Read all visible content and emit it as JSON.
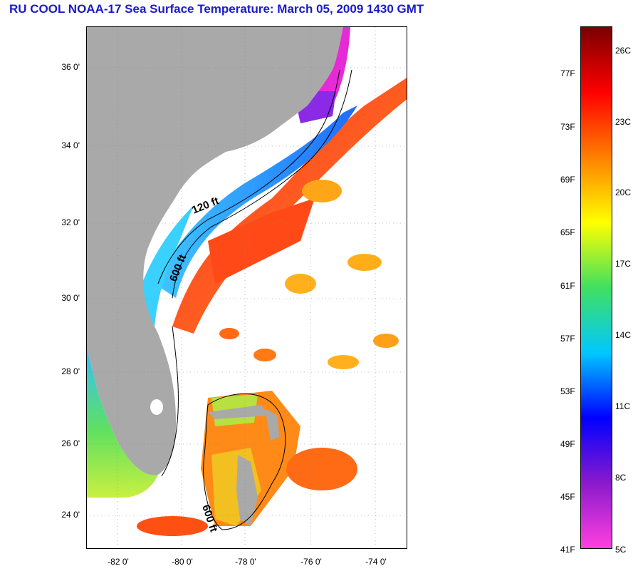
{
  "title": "RU COOL  NOAA-17  Sea Surface Temperature:  March 05, 2009 1430 GMT",
  "map": {
    "lat_labels": [
      "36 0'",
      "34 0'",
      "32 0'",
      "30 0'",
      "28 0'",
      "26 0'",
      "24 0'"
    ],
    "lon_labels": [
      "-82 0'",
      "-80 0'",
      "-78 0'",
      "-76 0'",
      "-74 0'"
    ],
    "contour_labels": [
      "120 ft",
      "600 ft",
      "600 ft"
    ],
    "colors": {
      "land": "#a9a9a9",
      "cloud": "#ffffff",
      "warm_stream": "#ff3b1e",
      "shelf_blue": "#1e9bff",
      "cold_magenta": "#e62ad6"
    }
  },
  "colorbar": {
    "fahrenheit": [
      "77F",
      "73F",
      "69F",
      "65F",
      "61F",
      "57F",
      "53F",
      "49F",
      "45F",
      "41F"
    ],
    "celsius": [
      "26C",
      "23C",
      "20C",
      "17C",
      "14C",
      "11C",
      "8C",
      "5C"
    ],
    "range_celsius": [
      5,
      27.5
    ],
    "gradient": [
      "#ff40e0",
      "#8a1acc",
      "#0000ff",
      "#00c8ff",
      "#40e060",
      "#ffff00",
      "#ff8000",
      "#ff0000",
      "#7a0000"
    ]
  }
}
